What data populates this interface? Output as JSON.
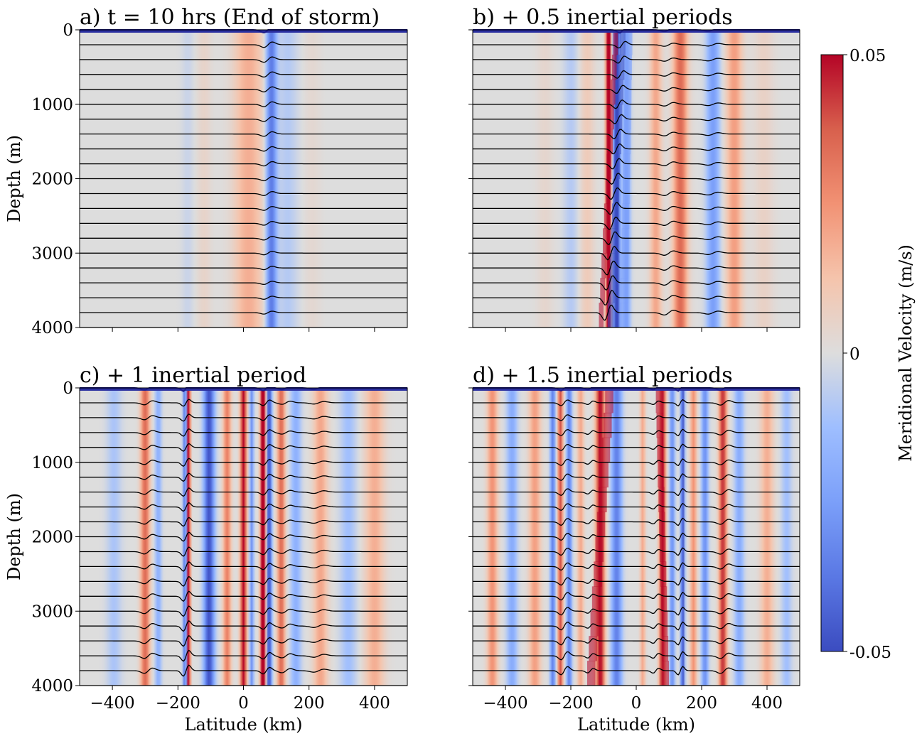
{
  "chart_data": {
    "type": "heatmap",
    "colorbar": {
      "label": "Meridional Velocity (m/s)",
      "range": [
        -0.05,
        0.05
      ],
      "ticks": [
        "0.05",
        "0",
        "-0.05"
      ],
      "colormap": "coolwarm",
      "colors": {
        "low": "#3b4cc0",
        "mid": "#dddddd",
        "high": "#b40426"
      }
    },
    "x_range": [
      -500,
      500
    ],
    "y_range": [
      0,
      4000
    ],
    "isopycnal_count": 20,
    "panels": [
      {
        "title": "a) t = 10 hrs (End of storm)",
        "ylabel": "Depth (m)",
        "xlabel": "",
        "xticks": [
          "-400",
          "-200",
          "0",
          "200",
          "400"
        ],
        "yticks": [
          "0",
          "1000",
          "2000",
          "3000",
          "4000"
        ],
        "bands": [
          {
            "x": -170,
            "w": 18,
            "amp": -0.004
          },
          {
            "x": -120,
            "w": 22,
            "amp": 0.005
          },
          {
            "x": 15,
            "w": 45,
            "amp": 0.018
          },
          {
            "x": 85,
            "w": 16,
            "amp": -0.038
          },
          {
            "x": 135,
            "w": 30,
            "amp": -0.008
          },
          {
            "x": 210,
            "w": 25,
            "amp": 0.003
          }
        ],
        "wiggles": [
          {
            "x": 75,
            "w": 18,
            "amp": 55,
            "grow": -0.5
          }
        ]
      },
      {
        "title": "b) + 0.5 inertial periods",
        "ylabel": "",
        "xlabel": "",
        "xticks": [
          "-400",
          "-200",
          "0",
          "200",
          "400"
        ],
        "yticks": [],
        "bands": [
          {
            "x": -280,
            "w": 25,
            "amp": 0.004
          },
          {
            "x": -200,
            "w": 22,
            "amp": -0.008
          },
          {
            "x": -150,
            "w": 22,
            "amp": 0.009
          },
          {
            "x": -85,
            "w": 8,
            "amp": 0.065,
            "tilt": -0.012
          },
          {
            "x": -60,
            "w": 10,
            "amp": -0.06,
            "tilt": -0.01
          },
          {
            "x": -30,
            "w": 12,
            "amp": -0.025,
            "tilt": -0.004
          },
          {
            "x": 60,
            "w": 18,
            "amp": 0.02
          },
          {
            "x": 135,
            "w": 22,
            "amp": 0.035
          },
          {
            "x": 235,
            "w": 20,
            "amp": -0.025
          },
          {
            "x": 300,
            "w": 25,
            "amp": 0.022
          },
          {
            "x": 390,
            "w": 30,
            "amp": 0.006
          }
        ],
        "wiggles": [
          {
            "x": -65,
            "w": 14,
            "amp": 60,
            "grow": 1.6,
            "tilt": -0.012
          },
          {
            "x": 100,
            "w": 20,
            "amp": 30,
            "grow": 0.6
          },
          {
            "x": 235,
            "w": 22,
            "amp": 25,
            "grow": 0.2
          }
        ]
      },
      {
        "title": "c) + 1 inertial period",
        "ylabel": "Depth (m)",
        "xlabel": "Latitude (km)",
        "xticks": [
          "-400",
          "-200",
          "0",
          "200",
          "400"
        ],
        "yticks": [
          "0",
          "1000",
          "2000",
          "3000",
          "4000"
        ],
        "bands": [
          {
            "x": -395,
            "w": 22,
            "amp": -0.01
          },
          {
            "x": -300,
            "w": 14,
            "amp": 0.035
          },
          {
            "x": -260,
            "w": 10,
            "amp": -0.018
          },
          {
            "x": -178,
            "w": 6,
            "amp": -0.045
          },
          {
            "x": -168,
            "w": 6,
            "amp": 0.055
          },
          {
            "x": -105,
            "w": 16,
            "amp": -0.048
          },
          {
            "x": -50,
            "w": 12,
            "amp": 0.03
          },
          {
            "x": 0,
            "w": 10,
            "amp": 0.05
          },
          {
            "x": 25,
            "w": 6,
            "amp": -0.03
          },
          {
            "x": 60,
            "w": 8,
            "amp": 0.07
          },
          {
            "x": 78,
            "w": 8,
            "amp": -0.05
          },
          {
            "x": 115,
            "w": 12,
            "amp": 0.035
          },
          {
            "x": 160,
            "w": 16,
            "amp": -0.018
          },
          {
            "x": 235,
            "w": 22,
            "amp": 0.02
          },
          {
            "x": 320,
            "w": 25,
            "amp": -0.012
          },
          {
            "x": 400,
            "w": 30,
            "amp": 0.018
          }
        ],
        "wiggles": [
          {
            "x": -175,
            "w": 12,
            "amp": 65,
            "grow": 0.7
          },
          {
            "x": -290,
            "w": 18,
            "amp": 40,
            "grow": 0.3
          },
          {
            "x": 70,
            "w": 14,
            "amp": 55,
            "grow": 0.2
          },
          {
            "x": 130,
            "w": 18,
            "amp": 30,
            "grow": 0.4
          },
          {
            "x": 230,
            "w": 22,
            "amp": 25,
            "grow": 0.2
          }
        ]
      },
      {
        "title": "d) + 1.5 inertial periods",
        "ylabel": "",
        "xlabel": "Latitude (km)",
        "xticks": [
          "-400",
          "-200",
          "0",
          "200",
          "400"
        ],
        "yticks": [],
        "bands": [
          {
            "x": -440,
            "w": 16,
            "amp": 0.025
          },
          {
            "x": -380,
            "w": 16,
            "amp": -0.02
          },
          {
            "x": -310,
            "w": 18,
            "amp": 0.022
          },
          {
            "x": -255,
            "w": 8,
            "amp": -0.035
          },
          {
            "x": -232,
            "w": 8,
            "amp": 0.04
          },
          {
            "x": -205,
            "w": 8,
            "amp": -0.035
          },
          {
            "x": -170,
            "w": 10,
            "amp": 0.02
          },
          {
            "x": -110,
            "w": 14,
            "amp": 0.05,
            "tilt": -0.015
          },
          {
            "x": -60,
            "w": 16,
            "amp": -0.035
          },
          {
            "x": 20,
            "w": 8,
            "amp": 0.02
          },
          {
            "x": 80,
            "w": 10,
            "amp": 0.05,
            "tilt": 0.006
          },
          {
            "x": 110,
            "w": 8,
            "amp": -0.03
          },
          {
            "x": 142,
            "w": 6,
            "amp": -0.05
          },
          {
            "x": 175,
            "w": 10,
            "amp": 0.025
          },
          {
            "x": 210,
            "w": 10,
            "amp": -0.03
          },
          {
            "x": 265,
            "w": 12,
            "amp": 0.045
          },
          {
            "x": 315,
            "w": 14,
            "amp": -0.02
          },
          {
            "x": 400,
            "w": 20,
            "amp": 0.018
          },
          {
            "x": 460,
            "w": 16,
            "amp": -0.012
          }
        ],
        "wiggles": [
          {
            "x": -220,
            "w": 14,
            "amp": 55,
            "grow": 0.5
          },
          {
            "x": -140,
            "w": 12,
            "amp": 35,
            "grow": 0.3
          },
          {
            "x": 135,
            "w": 10,
            "amp": 60,
            "grow": 0.4
          },
          {
            "x": 60,
            "w": 12,
            "amp": 35,
            "grow": 0.4
          },
          {
            "x": 270,
            "w": 18,
            "amp": 45,
            "grow": 0.2
          }
        ]
      }
    ]
  }
}
